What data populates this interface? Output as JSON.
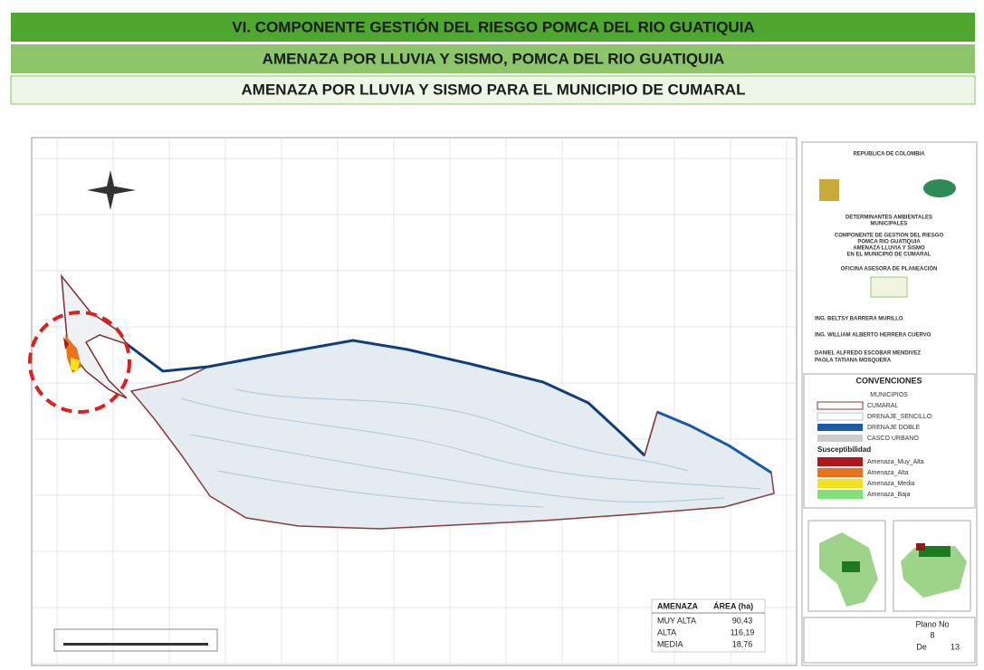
{
  "header": {
    "title": "VI. COMPONENTE GESTIÓN DEL RIESGO POMCA DEL RIO GUATIQUIA",
    "subtitle": "AMENAZA POR LLUVIA Y SISMO, POMCA DEL RIO GUATIQUIA",
    "section": "AMENAZA POR LLUVIA Y SISMO PARA EL MUNICIPIO DE CUMARAL"
  },
  "title_block": {
    "country": "REPUBLICA DE COLOMBIA",
    "project": [
      "DETERMINANTES AMBIENTALES",
      "MUNICIPALES"
    ],
    "plan": [
      "COMPONENTE DE GESTION DEL RIESGO",
      "POMCA RIO GUATIQUIA",
      "AMENAZA LLUVIA Y SISMO",
      "EN EL MUNICIPIO DE CUMARAL"
    ],
    "office": "OFICINA ASESORA DE PLANEACIÓN",
    "credits": [
      "ING. BELTSY BARRERA MURILLO",
      "ING. WILLIAM ALBERTO HERRERA CUERVO",
      "DANIEL ALFREDO ESCOBAR MENDIVEZ",
      "PAOLA TATIANA MOSQUERA"
    ]
  },
  "legend": {
    "title": "CONVENCIONES",
    "items": [
      "MUNICIPIOS",
      "CUMARAL",
      "DRENAJE_SENCILLO",
      "DRENAJE DOBLE",
      "CASCO URBANO"
    ],
    "group": "Susceptibilidad",
    "classes": [
      "Amenaza_Muy_Alta",
      "Amenaza_Alta",
      "Amenaza_Media",
      "Amenaza_Baja"
    ]
  },
  "table": {
    "header": [
      "AMENAZA",
      "ÁREA (ha)"
    ],
    "rows": [
      [
        "MUY ALTA",
        "90,43"
      ],
      [
        "ALTA",
        "116,19"
      ],
      [
        "MEDIA",
        "18,76"
      ]
    ]
  },
  "sheet": {
    "label": "Plano No",
    "number": "8",
    "of_label": "De",
    "total": "13"
  }
}
